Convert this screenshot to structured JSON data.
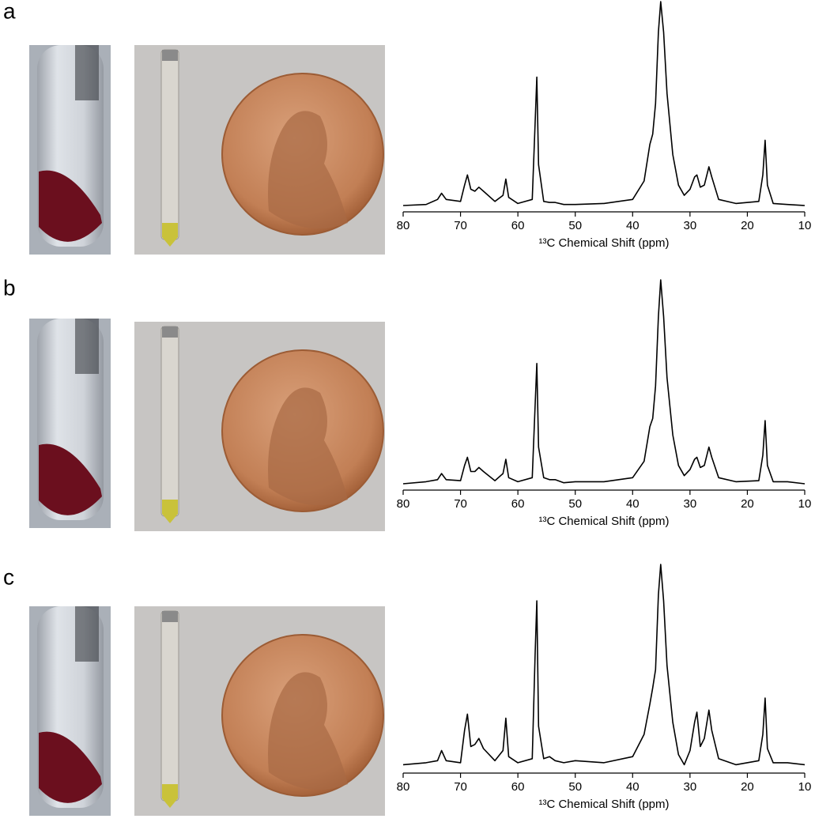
{
  "chart_data": [
    {
      "type": "line",
      "label": "a",
      "x_label": "¹³C Chemical Shift (ppm)",
      "color": "#000000",
      "x": [
        80,
        76,
        74,
        73.3,
        72.5,
        70,
        69.3,
        68.8,
        68.2,
        67.5,
        66.8,
        66,
        64,
        62.6,
        62.1,
        61.6,
        60,
        57.5,
        57,
        56.7,
        56.4,
        55.5,
        54.5,
        53.5,
        52,
        50,
        45,
        40,
        38,
        37,
        36.5,
        36,
        35.5,
        35.1,
        34.6,
        34,
        33,
        32,
        31,
        30,
        29.2,
        28.8,
        28.2,
        27.5,
        26.7,
        26.2,
        25,
        22,
        18,
        17.3,
        16.9,
        16.5,
        15.5,
        13,
        10
      ],
      "values": [
        0,
        0.5,
        3,
        6,
        3,
        2,
        10,
        15,
        8,
        7,
        9,
        7,
        2,
        5,
        13,
        4,
        1,
        3,
        40,
        63,
        20,
        2,
        1.5,
        1.5,
        0.5,
        0.5,
        1,
        3,
        12,
        30,
        35,
        50,
        85,
        100,
        85,
        55,
        25,
        10,
        5,
        8,
        14,
        15,
        9,
        10,
        19,
        14,
        3,
        1,
        2,
        15,
        32,
        10,
        1,
        0.5,
        0
      ],
      "xlim": [
        80,
        10
      ],
      "xticks": [
        80,
        70,
        60,
        50,
        40,
        30,
        20,
        10
      ]
    },
    {
      "type": "line",
      "label": "b",
      "x_label": "¹³C Chemical Shift (ppm)",
      "color": "#000000",
      "x": [
        80,
        76,
        74,
        73.3,
        72.5,
        70,
        69.3,
        68.8,
        68.2,
        67.5,
        66.8,
        66,
        64,
        62.6,
        62.1,
        61.6,
        60,
        57.5,
        57,
        56.7,
        56.4,
        55.5,
        54.5,
        53.5,
        52,
        50,
        45,
        40,
        38,
        37,
        36.5,
        36,
        35.5,
        35.1,
        34.6,
        34,
        33,
        32,
        31,
        30,
        29.2,
        28.8,
        28.2,
        27.5,
        26.7,
        26.2,
        25,
        22,
        18,
        17.3,
        16.9,
        16.5,
        15.5,
        13,
        10
      ],
      "values": [
        0,
        1,
        2,
        5,
        2,
        1.5,
        9,
        13,
        6,
        6,
        8,
        6,
        1.5,
        5,
        12,
        3,
        1,
        3,
        38,
        59,
        18,
        3,
        2,
        2,
        0.5,
        1,
        1,
        3,
        11,
        28,
        32,
        48,
        82,
        100,
        82,
        52,
        24,
        9,
        4,
        7,
        12,
        13,
        8,
        9,
        18,
        13,
        3,
        1,
        1.5,
        14,
        31,
        9,
        1,
        1,
        0
      ],
      "xlim": [
        80,
        10
      ],
      "xticks": [
        80,
        70,
        60,
        50,
        40,
        30,
        20,
        10
      ]
    },
    {
      "type": "line",
      "label": "c",
      "x_label": "¹³C Chemical Shift (ppm)",
      "color": "#000000",
      "x": [
        80,
        76,
        74,
        73.3,
        72.5,
        70,
        69.3,
        68.8,
        68.2,
        67.5,
        66.8,
        66,
        64,
        62.6,
        62.1,
        61.6,
        60,
        57.5,
        57,
        56.7,
        56.4,
        55.5,
        54.5,
        53.5,
        52,
        50,
        45,
        40,
        38,
        37,
        36.5,
        36,
        35.5,
        35.1,
        34.6,
        34,
        33,
        32,
        31,
        30,
        29.2,
        28.8,
        28.2,
        27.5,
        26.7,
        26.2,
        25,
        22,
        18,
        17.3,
        16.9,
        16.5,
        15.5,
        13,
        10
      ],
      "values": [
        1,
        2,
        3,
        8,
        3,
        2,
        18,
        26,
        10,
        11,
        14,
        9,
        3,
        8,
        24,
        5,
        2,
        4,
        55,
        82,
        20,
        4,
        5,
        3,
        2,
        3,
        2,
        5,
        16,
        31,
        39,
        48,
        85,
        100,
        82,
        50,
        22,
        6,
        1,
        8,
        22,
        27,
        10,
        14,
        28,
        18,
        4,
        1,
        3,
        16,
        34,
        9,
        2,
        2,
        1
      ],
      "xlim": [
        80,
        10
      ],
      "xticks": [
        80,
        70,
        60,
        50,
        40,
        30,
        20,
        10
      ]
    }
  ]
}
